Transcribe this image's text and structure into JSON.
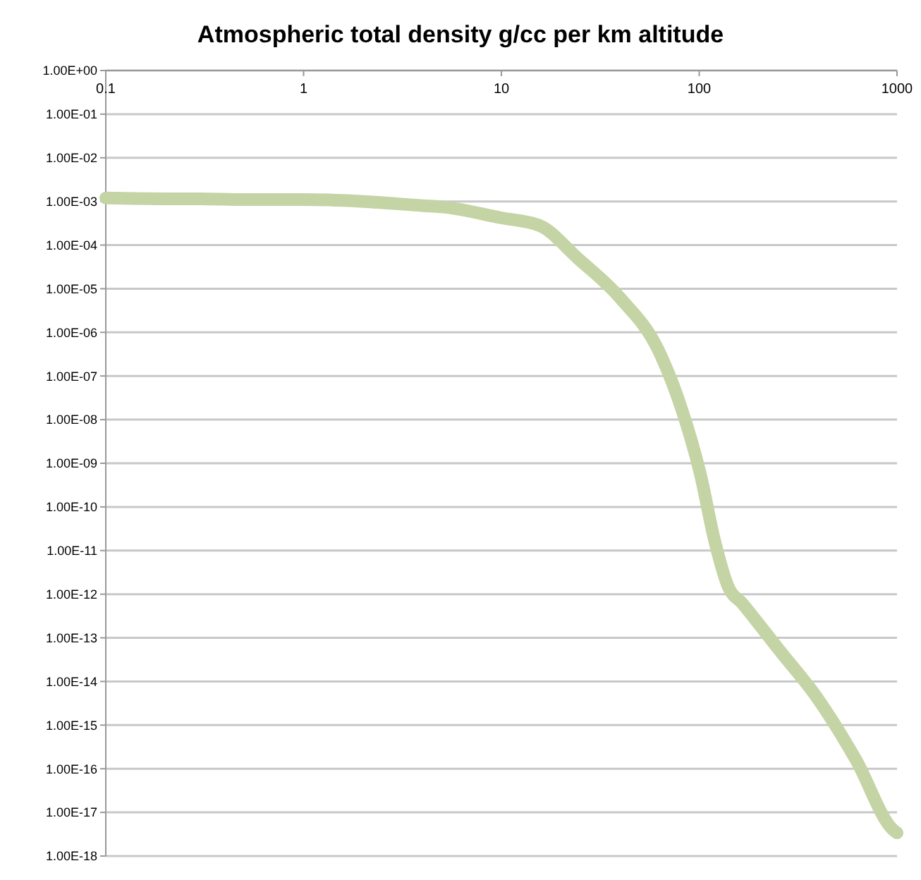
{
  "chart_data": {
    "type": "line",
    "title": "Atmospheric total density g/cc per km altitude",
    "x": [
      0.1,
      0.2,
      0.3,
      0.5,
      1,
      2,
      4,
      5,
      10,
      15.6,
      24.3,
      40,
      62,
      80.7,
      101,
      120,
      140,
      166,
      256,
      398,
      620,
      955,
      1000
    ],
    "series": [
      {
        "color": "#c4d4a4",
        "values": [
          0.0012,
          0.00115,
          0.00115,
          0.0011,
          0.0011,
          0.001,
          0.0008,
          0.00075,
          0.00042,
          0.00028,
          5e-05,
          6e-06,
          4e-07,
          2e-08,
          6e-10,
          1.6e-11,
          1.5e-12,
          6e-13,
          5e-14,
          4e-15,
          1.6e-16,
          4e-18,
          3.4e-18
        ]
      }
    ],
    "log": "xy",
    "marker": "none",
    "line_style": "solid",
    "grid": "y",
    "xlim": [
      0.1,
      1000
    ],
    "xticks": [
      0.1,
      1,
      10,
      100,
      1000
    ],
    "ylim": [
      1e-18,
      1
    ],
    "yticks": [
      {
        "value": 1,
        "label": "1.00E+00"
      },
      {
        "value": 0.1,
        "label": "1.00E-01"
      },
      {
        "value": 0.01,
        "label": "1.00E-02"
      },
      {
        "value": 0.001,
        "label": "1.00E-03"
      },
      {
        "value": 0.0001,
        "label": "1.00E-04"
      },
      {
        "value": 1e-05,
        "label": "1.00E-05"
      },
      {
        "value": 1e-06,
        "label": "1.00E-06"
      },
      {
        "value": 1e-07,
        "label": "1.00E-07"
      },
      {
        "value": 1e-08,
        "label": "1.00E-08"
      },
      {
        "value": 1e-09,
        "label": "1.00E-09"
      },
      {
        "value": 1e-10,
        "label": "1.00E-10"
      },
      {
        "value": 1e-11,
        "label": "1.00E-11"
      },
      {
        "value": 1e-12,
        "label": "1.00E-12"
      },
      {
        "value": 1e-13,
        "label": "1.00E-13"
      },
      {
        "value": 1e-14,
        "label": "1.00E-14"
      },
      {
        "value": 1e-15,
        "label": "1.00E-15"
      },
      {
        "value": 1e-16,
        "label": "1.00E-16"
      },
      {
        "value": 1e-17,
        "label": "1.00E-17"
      },
      {
        "value": 1e-18,
        "label": "1.00E-18"
      }
    ]
  }
}
